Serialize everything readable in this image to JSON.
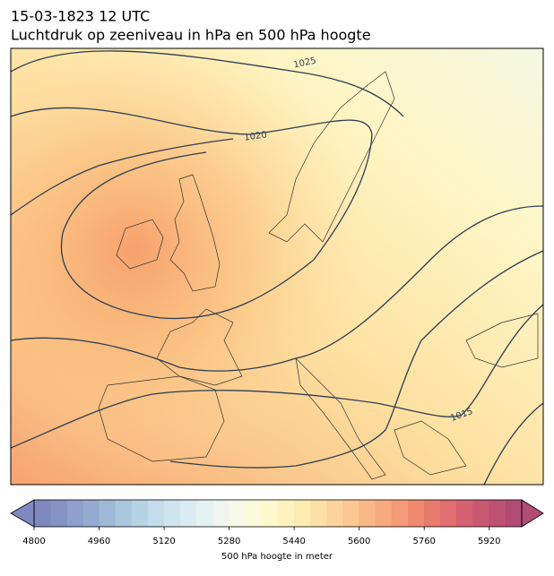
{
  "header": {
    "title": "15-03-1823 12 UTC",
    "subtitle": "Luchtdruk op zeeniveau in hPa en 500 hPa hoogte"
  },
  "contour_labels": [
    "1025",
    "1020",
    "1015"
  ],
  "colorbar": {
    "label": "500 hPa hoogte in meter",
    "vlim": [
      4800,
      6000
    ],
    "ticks": [
      4800,
      4960,
      5120,
      5280,
      5440,
      5600,
      5760,
      5920
    ],
    "colors": [
      "#6a74b4",
      "#6f80ba",
      "#7a8fc2",
      "#829ec8",
      "#8dadcf",
      "#9cbdd8",
      "#a9cbe0",
      "#b8d7e6",
      "#c6e1ec",
      "#d3e9ef",
      "#e0f0f0",
      "#ebf5ec",
      "#f3f8e2",
      "#f9f9d4",
      "#fdf8c4",
      "#fef1b4",
      "#fee7a4",
      "#fddb96",
      "#fccd89",
      "#fbbd7d",
      "#f9ac71",
      "#f69a67",
      "#f2885e",
      "#ec7558",
      "#e46355",
      "#da5356",
      "#ce4559",
      "#c03c5b",
      "#b1335c",
      "#a22c5c"
    ]
  }
}
